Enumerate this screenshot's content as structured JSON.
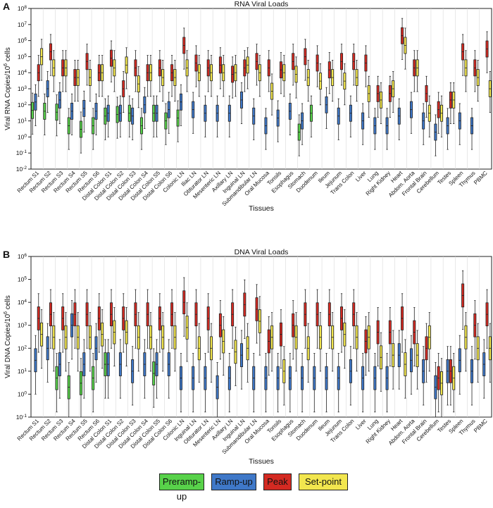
{
  "figure": {
    "legend": [
      {
        "label": "Preramp-up",
        "color": "#58d24a"
      },
      {
        "label": "Ramp-up",
        "color": "#3f78c8"
      },
      {
        "label": "Peak",
        "color": "#d42a22"
      },
      {
        "label": "Set-point",
        "color": "#f2e64e"
      }
    ]
  },
  "chart_data": [
    {
      "type": "box",
      "panel_letter": "A",
      "title": "RNA Viral Loads",
      "ylabel": "Viral RNA Copies/10^6 cells",
      "xlabel": "Tissues",
      "yscale": "log",
      "ylim": [
        0.01,
        100000000
      ],
      "ytick_labels": [
        "10^-2",
        "10^-1",
        "10^0",
        "10^1",
        "10^2",
        "10^3",
        "10^4",
        "10^5",
        "10^6",
        "10^7",
        "10^8"
      ],
      "categories": [
        "Rectum S1",
        "Rectum S2",
        "Rectum S3",
        "Rectum S4",
        "Rectum S5",
        "Rectum S6",
        "Distal Colon S1",
        "Distal Colon S2",
        "Distal Colon S3",
        "Distal Colon S4",
        "Distal Colon S5",
        "Distal Colon S6",
        "Colonic LN",
        "Iliac LN",
        "Obturator LN",
        "Mesenteric LN",
        "Axillary LN",
        "Inguinal LN",
        "Submandibular LN",
        "Oral Mucosa",
        "Tonsils",
        "Esophagus",
        "Stomach",
        "Duodenum",
        "Ileum",
        "Jejunum",
        "Trans Colon",
        "Liver",
        "Lung",
        "Right Kidney",
        "Heart",
        "Abdom. Aorta",
        "Frontal Brain",
        "Cerebellum",
        "Testes",
        "Spleen",
        "Thymus",
        "PBMC"
      ],
      "series": [
        {
          "name": "Preramp-up",
          "values": [
            45,
            40,
            35,
            5,
            3,
            5,
            20,
            25,
            30,
            5,
            30,
            10,
            15,
            null,
            null,
            null,
            null,
            null,
            null,
            null,
            null,
            null,
            2,
            30,
            null,
            null,
            null,
            null,
            null,
            null,
            null,
            null,
            null,
            null,
            null,
            null,
            null,
            null
          ]
        },
        {
          "name": "Ramp-up",
          "values": [
            150,
            1000,
            200,
            40,
            60,
            40,
            30,
            30,
            20,
            100,
            30,
            50,
            150,
            50,
            30,
            30,
            30,
            200,
            20,
            5,
            15,
            40,
            10,
            null,
            100,
            20,
            30,
            10,
            5,
            5,
            20,
            50,
            10,
            2,
            5,
            10,
            5,
            null
          ]
        },
        {
          "name": "Peak",
          "values": [
            10000,
            200000,
            20000,
            5000,
            50000,
            10000,
            80000,
            1000,
            20000,
            10000,
            20000,
            10000,
            500000,
            40000,
            20000,
            30000,
            8000,
            20000,
            50000,
            20000,
            15000,
            50000,
            100000,
            40000,
            15000,
            50000,
            50000,
            40000,
            500,
            500,
            2000000,
            20000,
            500,
            50,
            200,
            200000,
            20000,
            300000
          ]
        },
        {
          "name": "Set-point",
          "values": [
            100000,
            20000,
            20000,
            5000,
            5000,
            10000,
            20000,
            30000,
            2000,
            10000,
            5000,
            5000,
            20000,
            10000,
            10000,
            10000,
            10000,
            30000,
            10000,
            700,
            10000,
            8000,
            5000,
            3000,
            5000,
            3000,
            5000,
            500,
            200,
            1000,
            500000,
            20000,
            30,
            30,
            200,
            20000,
            5000,
            1000
          ]
        }
      ]
    },
    {
      "type": "box",
      "panel_letter": "B",
      "title": "DNA Viral Loads",
      "ylabel": "Viral DNA Copies/10^6 cells",
      "xlabel": "Tissues",
      "yscale": "log",
      "ylim": [
        0.1,
        1000000
      ],
      "ytick_labels": [
        "10^-1",
        "10^0",
        "10^1",
        "10^2",
        "10^3",
        "10^4",
        "10^5",
        "10^6"
      ],
      "categories": [
        "Rectum S1",
        "Rectum S2",
        "Rectum S3",
        "Rectum S4",
        "Rectum S5",
        "Rectum S6",
        "Distal Colon S1",
        "Distal Colon S2",
        "Distal Colon S3",
        "Distal Colon S4",
        "Distal Colon S5",
        "Distal Colon S6",
        "Colonic LN",
        "Inguinal LN",
        "Obturator LN",
        "Mesenteric LN",
        "Axillary LN",
        "Inguinal LN",
        "Submandibular LN",
        "Oral Mucosa",
        "Tonsils",
        "Esophagus",
        "Stomach",
        "Duodenum",
        "Ileum",
        "Jejunum",
        "Trans Colon",
        "Liver",
        "Lung",
        "Right Kidney",
        "Heart",
        "Abdom. Aorta",
        "Frontal Brain",
        "Cerebellum",
        "Testes",
        "Spleen",
        "Thymus",
        "PBMC"
      ],
      "series": [
        {
          "name": "Preramp-up",
          "values": [
            null,
            null,
            5,
            2,
            3,
            5,
            20,
            null,
            null,
            null,
            8,
            null,
            null,
            null,
            null,
            null,
            null,
            null,
            null,
            null,
            null,
            null,
            null,
            null,
            null,
            null,
            null,
            null,
            null,
            null,
            null,
            null,
            null,
            null,
            null,
            null,
            null,
            null
          ]
        },
        {
          "name": "Ramp-up",
          "values": [
            30,
            100,
            20,
            1000,
            20,
            100,
            20,
            20,
            10,
            20,
            20,
            20,
            5,
            5,
            5,
            2,
            5,
            50,
            5,
            5,
            5,
            5,
            5,
            5,
            5,
            5,
            10,
            5,
            5,
            5,
            50,
            30,
            10,
            2,
            10,
            30,
            10,
            20
          ]
        },
        {
          "name": "Peak",
          "values": [
            2000,
            3000,
            2000,
            3000,
            3000,
            2000,
            3000,
            2000,
            3000,
            3000,
            2000,
            3000,
            10000,
            3000,
            2000,
            1000,
            3000,
            8000,
            5000,
            200,
            400,
            1000,
            3000,
            3000,
            3000,
            2000,
            3000,
            200,
            500,
            500,
            2000,
            500,
            100,
            5,
            10,
            20000,
            1000,
            3000
          ]
        },
        {
          "name": "Set-point",
          "values": [
            400,
            300,
            300,
            300,
            300,
            400,
            500,
            500,
            300,
            300,
            300,
            300,
            800,
            100,
            100,
            200,
            70,
            100,
            1500,
            300,
            10,
            300,
            100,
            300,
            300,
            400,
            300,
            300,
            40,
            50,
            20,
            50,
            300,
            3,
            5,
            300,
            100,
            100
          ]
        }
      ]
    }
  ]
}
